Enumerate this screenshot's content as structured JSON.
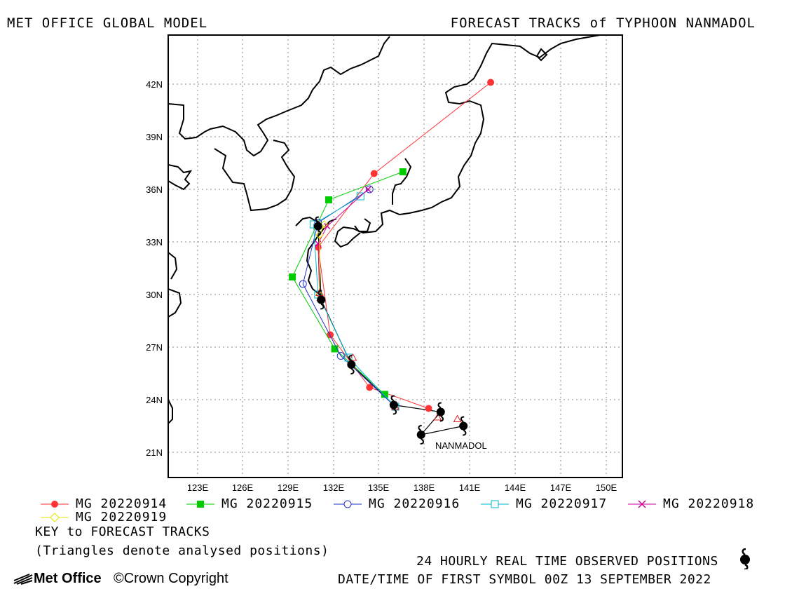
{
  "header": {
    "left_title": "MET OFFICE GLOBAL MODEL",
    "right_title": "FORECAST TRACKS of TYPHOON NANMADOL"
  },
  "map": {
    "lat_ticks": [
      "42N",
      "39N",
      "36N",
      "33N",
      "30N",
      "27N",
      "24N",
      "21N"
    ],
    "lon_ticks": [
      "123E",
      "126E",
      "129E",
      "132E",
      "135E",
      "138E",
      "141E",
      "144E",
      "147E",
      "150E"
    ],
    "storm_label": "NANMADOL",
    "lon_range": [
      121,
      151
    ],
    "lat_range": [
      19.5,
      45
    ]
  },
  "legend": {
    "entries": [
      {
        "label": "MG 20220914",
        "color": "#ff3333",
        "marker": "circle-filled"
      },
      {
        "label": "MG 20220915",
        "color": "#00cc00",
        "marker": "square-filled"
      },
      {
        "label": "MG 20220916",
        "color": "#2233cc",
        "marker": "circle-open"
      },
      {
        "label": "MG 20220917",
        "color": "#00b8c8",
        "marker": "square-open"
      },
      {
        "label": "MG 20220918",
        "color": "#cc0099",
        "marker": "x"
      },
      {
        "label": "MG 20220919",
        "color": "#e6e600",
        "marker": "diamond-open"
      }
    ],
    "key_title": "KEY to FORECAST TRACKS",
    "key_note": "(Triangles denote analysed positions)"
  },
  "footer": {
    "observed_note": "24 HOURLY REAL TIME OBSERVED POSITIONS",
    "datetime_note": "DATE/TIME OF FIRST SYMBOL 00Z 13 SEPTEMBER 2022",
    "logo_text": "Met Office",
    "copyright": "©Crown Copyright"
  },
  "chart_data": {
    "type": "map",
    "observed_track": [
      {
        "lon": 140.5,
        "lat": 22.5
      },
      {
        "lon": 137.7,
        "lat": 22.0
      },
      {
        "lon": 139.0,
        "lat": 23.3
      },
      {
        "lon": 135.9,
        "lat": 23.7
      },
      {
        "lon": 133.1,
        "lat": 26.0
      },
      {
        "lon": 131.1,
        "lat": 29.7
      },
      {
        "lon": 130.9,
        "lat": 33.9
      }
    ],
    "forecast_tracks": [
      {
        "name": "MG 20220914",
        "points": [
          [
            138.2,
            23.5
          ],
          [
            134.3,
            24.7
          ],
          [
            131.7,
            27.7
          ],
          [
            130.9,
            32.7
          ],
          [
            134.6,
            36.9
          ],
          [
            142.3,
            42.1
          ]
        ]
      },
      {
        "name": "MG 20220915",
        "points": [
          [
            135.3,
            24.3
          ],
          [
            132.0,
            26.9
          ],
          [
            129.2,
            31.0
          ],
          [
            131.6,
            35.4
          ],
          [
            136.5,
            37.0
          ]
        ]
      },
      {
        "name": "MG 20220916",
        "points": [
          [
            136.0,
            23.6
          ],
          [
            132.4,
            26.5
          ],
          [
            129.9,
            30.6
          ],
          [
            130.9,
            34.1
          ],
          [
            134.3,
            36.0
          ]
        ]
      },
      {
        "name": "MG 20220917",
        "points": [
          [
            136.0,
            23.6
          ],
          [
            132.9,
            26.4
          ],
          [
            130.9,
            30.0
          ],
          [
            130.6,
            34.0
          ],
          [
            133.7,
            35.6
          ]
        ]
      },
      {
        "name": "MG 20220918",
        "points": [
          [
            131.0,
            29.8
          ],
          [
            130.9,
            32.9
          ],
          [
            131.5,
            33.9
          ],
          [
            134.2,
            36.0
          ]
        ]
      },
      {
        "name": "MG 20220919",
        "points": [
          [
            131.0,
            30.0
          ],
          [
            131.0,
            33.4
          ],
          [
            131.3,
            34.0
          ]
        ]
      }
    ],
    "analysed_positions": [
      [
        140.1,
        22.9
      ],
      [
        138.8,
        23.0
      ],
      [
        136.0,
        23.6
      ],
      [
        133.2,
        26.4
      ],
      [
        131.0,
        30.1
      ],
      [
        130.9,
        34.0
      ]
    ]
  }
}
